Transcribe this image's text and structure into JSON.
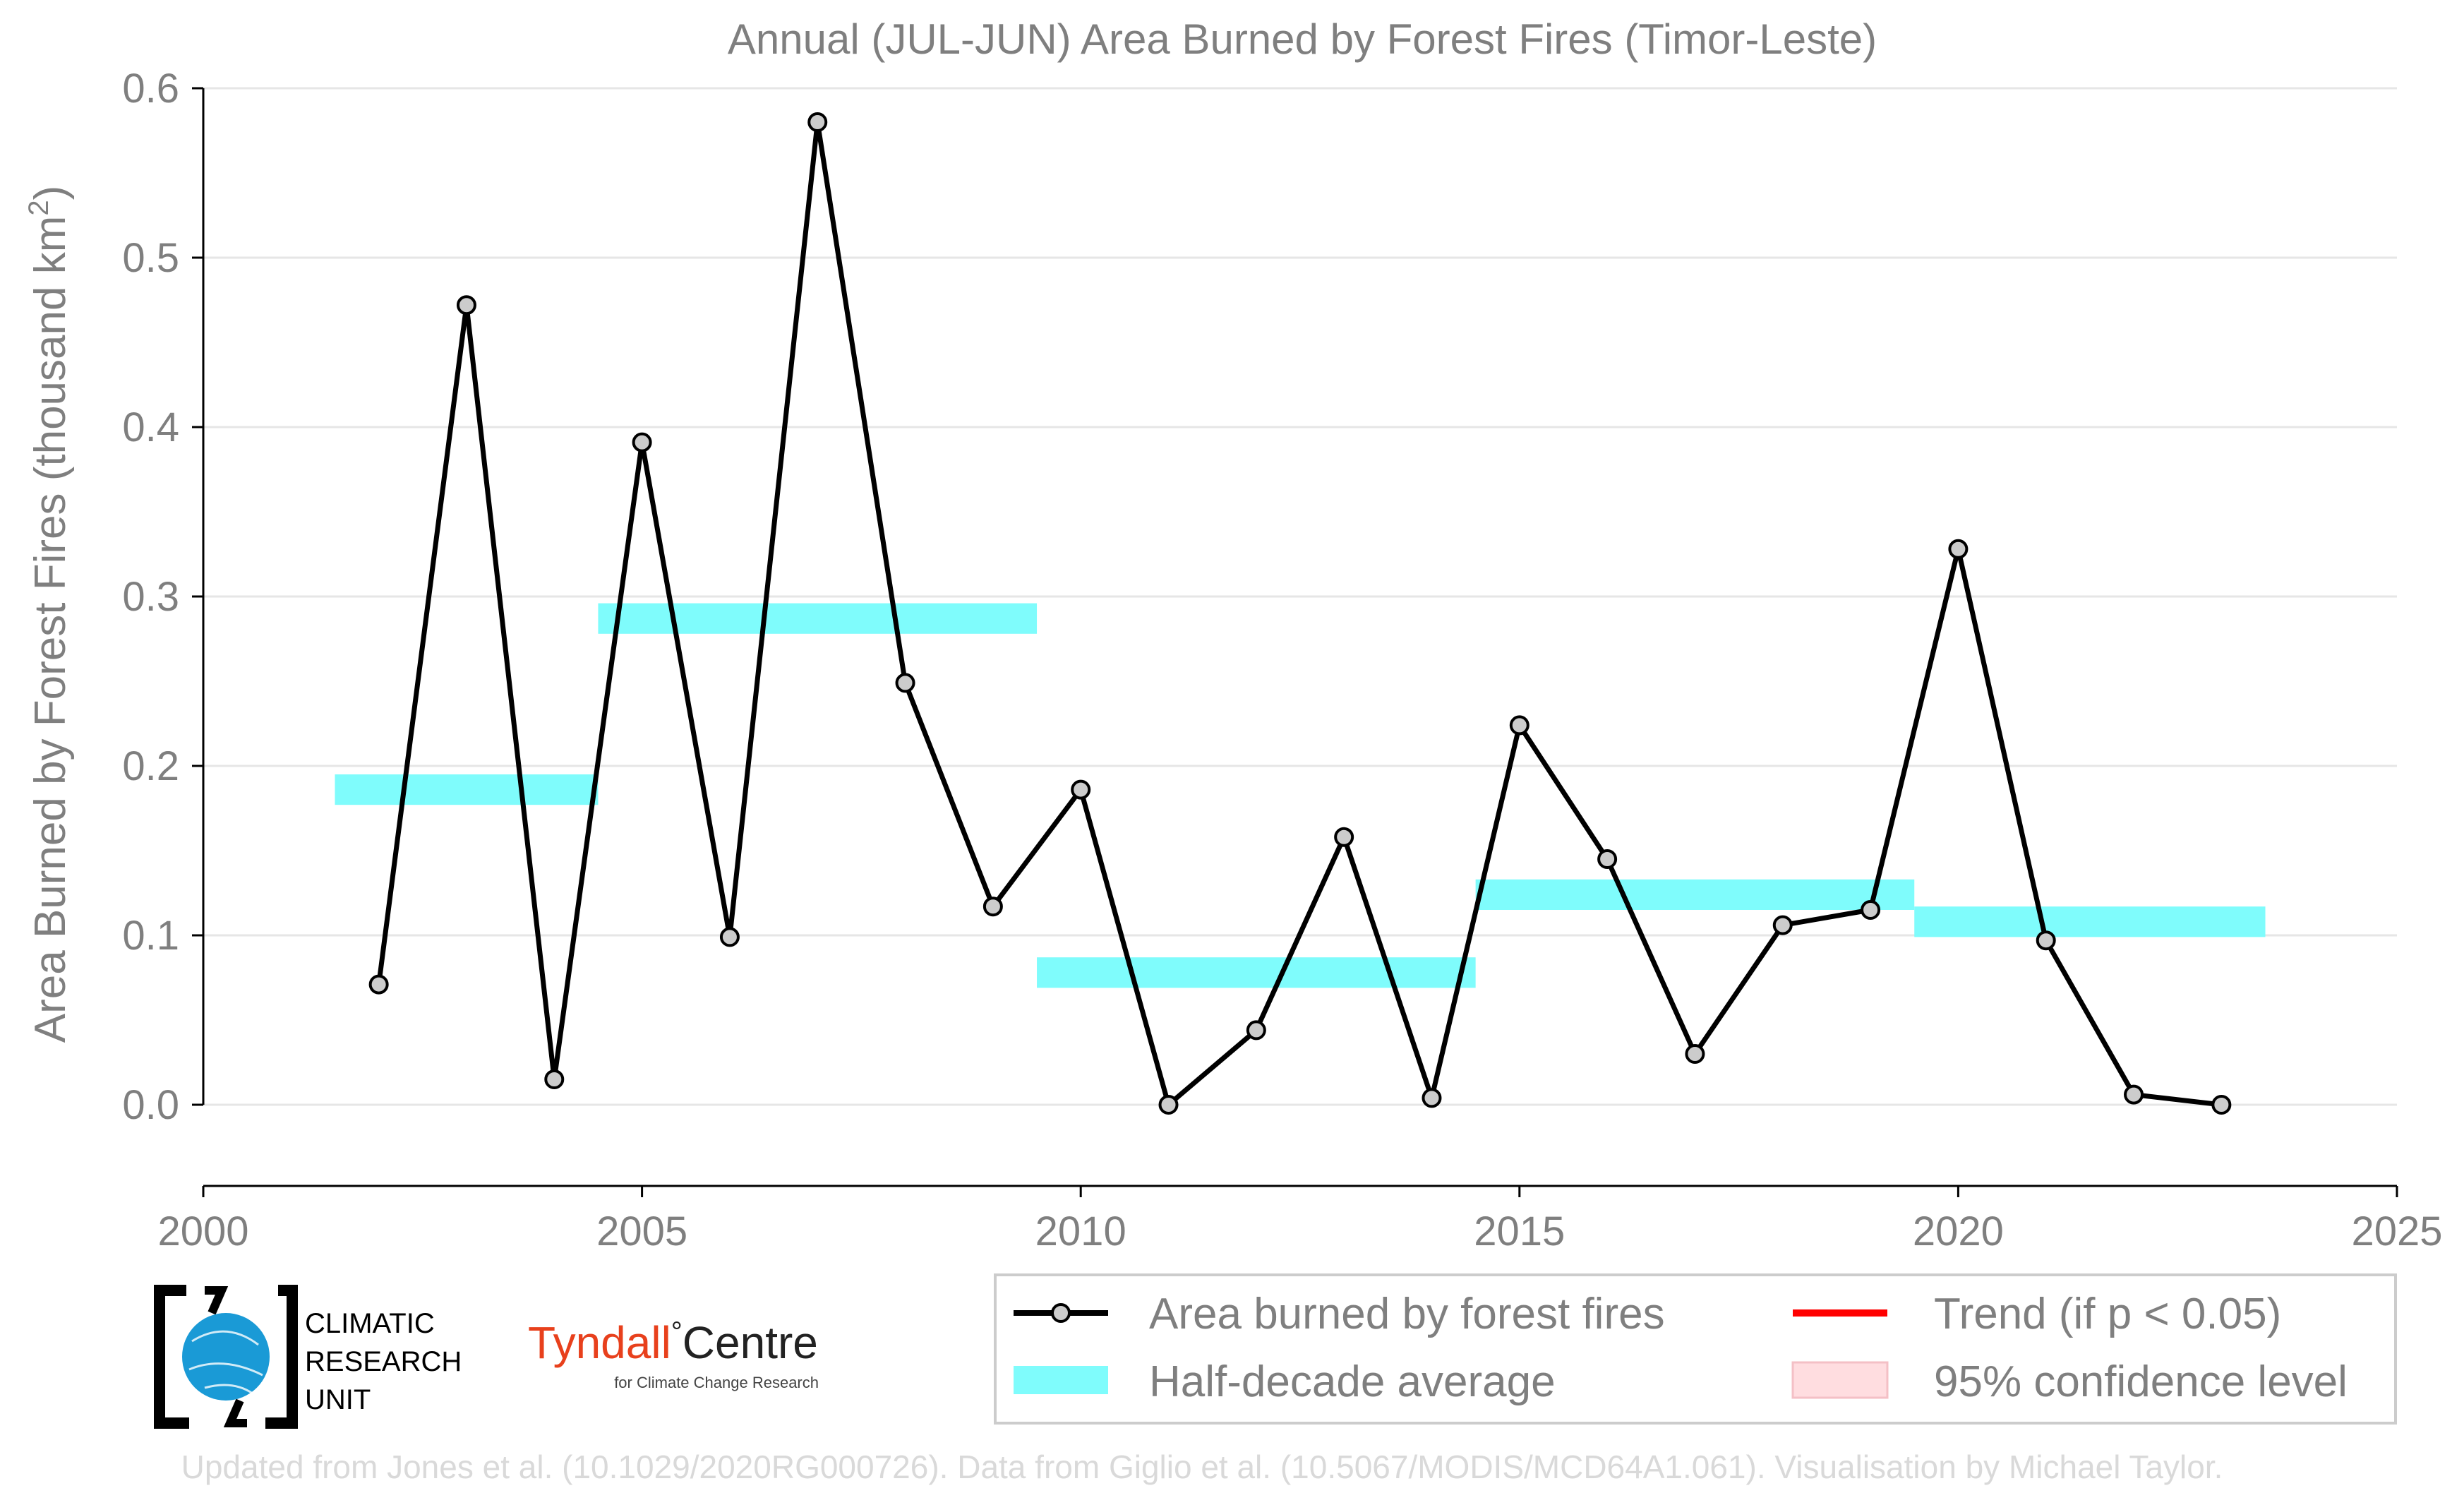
{
  "chart_data": {
    "type": "line",
    "title": "Annual (JUL-JUN) Area Burned by Forest Fires (Timor-Leste)",
    "ylabel": "Area Burned by Forest Fires (thousand km",
    "ylabel_sup": "2",
    "ylabel_close": ")",
    "xlim": [
      2000,
      2025
    ],
    "ylim": [
      0.0,
      0.6
    ],
    "x_ticks": [
      2000,
      2005,
      2010,
      2015,
      2020,
      2025
    ],
    "x_tick_labels": [
      "2000",
      "2005",
      "2010",
      "2015",
      "2020",
      "2025"
    ],
    "y_ticks": [
      0.0,
      0.1,
      0.2,
      0.3,
      0.4,
      0.5,
      0.6
    ],
    "y_tick_labels": [
      "0.0",
      "0.1",
      "0.2",
      "0.3",
      "0.4",
      "0.5",
      "0.6"
    ],
    "grid": "horizontal",
    "series": [
      {
        "name": "Area burned by forest fires",
        "color": "#000000",
        "marker_fill": "#cccccc",
        "x": [
          2002,
          2003,
          2004,
          2005,
          2006,
          2007,
          2008,
          2009,
          2010,
          2011,
          2012,
          2013,
          2014,
          2015,
          2016,
          2017,
          2018,
          2019,
          2020,
          2021,
          2022,
          2023
        ],
        "y": [
          0.071,
          0.472,
          0.015,
          0.391,
          0.099,
          0.58,
          0.249,
          0.117,
          0.186,
          0.0,
          0.044,
          0.158,
          0.004,
          0.224,
          0.145,
          0.03,
          0.106,
          0.115,
          0.328,
          0.097,
          0.006,
          0.0
        ]
      }
    ],
    "half_decade_averages": {
      "name": "Half-decade average",
      "color": "#7ffcfc",
      "segments": [
        {
          "x0": 2001.5,
          "x1": 2004.5,
          "y": 0.186
        },
        {
          "x0": 2004.5,
          "x1": 2009.5,
          "y": 0.287
        },
        {
          "x0": 2009.5,
          "x1": 2014.5,
          "y": 0.078
        },
        {
          "x0": 2014.5,
          "x1": 2019.5,
          "y": 0.124
        },
        {
          "x0": 2019.5,
          "x1": 2023.5,
          "y": 0.108
        }
      ]
    },
    "legend": {
      "placement": "bottom-right",
      "entries": [
        {
          "label": "Area burned by forest fires",
          "kind": "line-marker",
          "color": "#000000"
        },
        {
          "label": "Trend (if p < 0.05)",
          "kind": "line",
          "color": "#ff0000"
        },
        {
          "label": "Half-decade average",
          "kind": "band",
          "color": "#7ffcfc"
        },
        {
          "label": "95% confidence level",
          "kind": "patch",
          "color": "#ffdde0"
        }
      ]
    }
  },
  "logos": {
    "cru_lines": [
      "CLIMATIC",
      "RESEARCH",
      "UNIT"
    ],
    "tyndall_name": "Tyndall",
    "tyndall_degree": "°",
    "tyndall_centre": "Centre",
    "tyndall_sub": "for Climate Change Research"
  },
  "footer": "Updated from Jones et al. (10.1029/2020RG000726). Data from Giglio et al. (10.5067/MODIS/MCD64A1.061). Visualisation by Michael Taylor."
}
